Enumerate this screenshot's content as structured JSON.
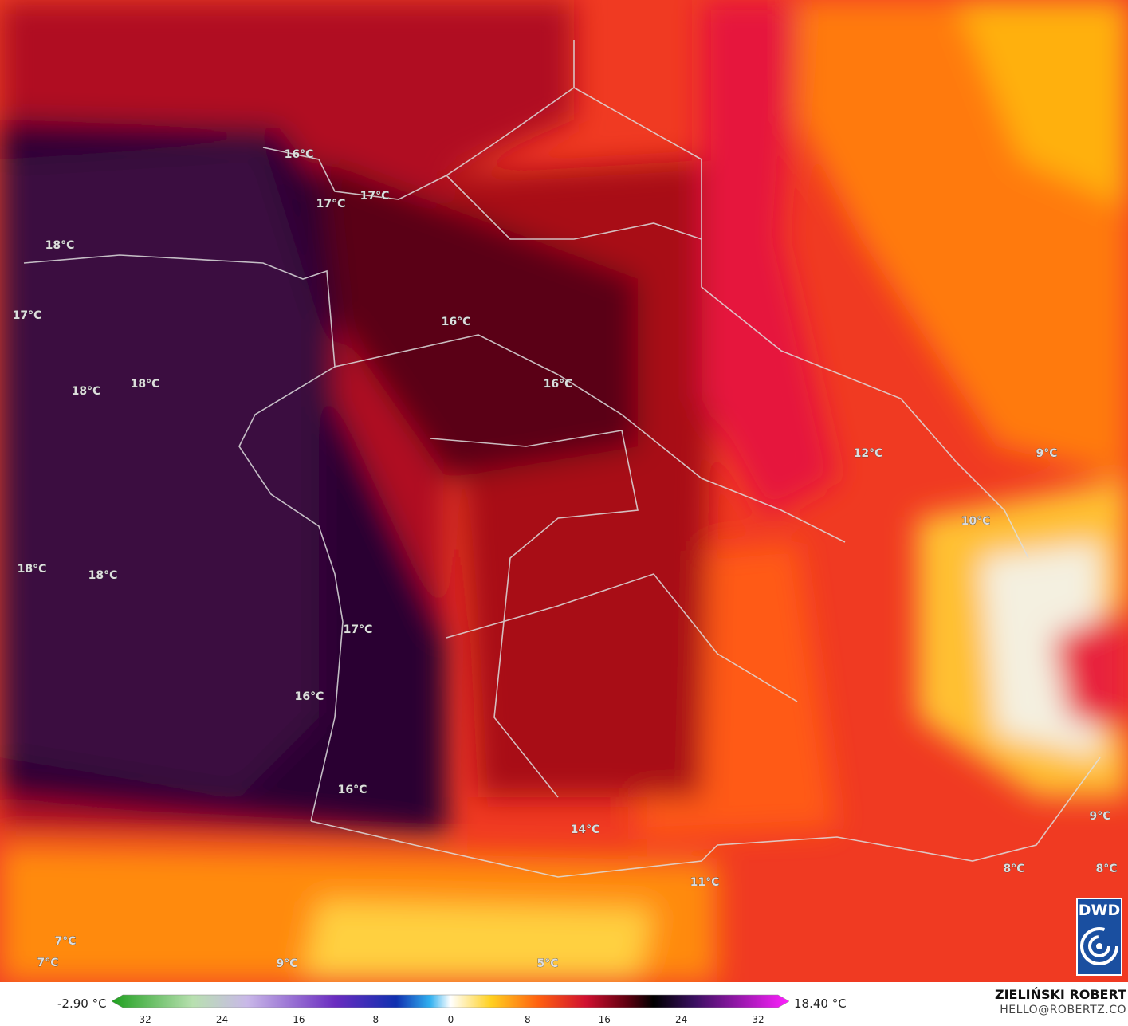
{
  "map": {
    "labels": [
      "16°C",
      "17°C",
      "17°C",
      "18°C",
      "17°C",
      "16°C",
      "16°C",
      "18°C",
      "18°C",
      "12°C",
      "9°C",
      "10°C",
      "18°C",
      "18°C",
      "17°C",
      "16°C",
      "16°C",
      "14°C",
      "9°C",
      "8°C",
      "8°C",
      "11°C",
      "7°C",
      "7°C",
      "9°C",
      "5°C"
    ]
  },
  "colorbar": {
    "min_label": "-2.90 °C",
    "max_label": "18.40 °C",
    "ticks": [
      -32,
      -24,
      -16,
      -8,
      0,
      8,
      16,
      24,
      32
    ]
  },
  "credit": {
    "author": "ZIELIŃSKI ROBERT",
    "contact": "HELLO@ROBERTZ.CO",
    "logo": "DWD"
  }
}
